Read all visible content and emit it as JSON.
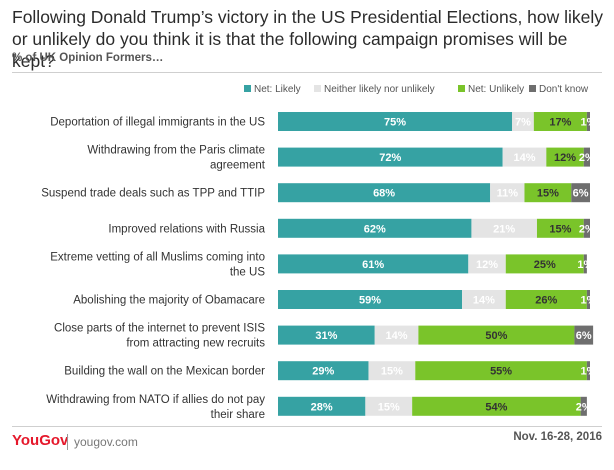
{
  "title": "Following Donald Trump’s victory in the US Presidential Elections, how likely or unlikely do you think it is that the following campaign promises will be kept?",
  "subtitle": "% of UK Opinion Formers…",
  "footer": {
    "logo": "YouGov",
    "site": "yougov.com",
    "date": "Nov. 16-28, 2016"
  },
  "chart_data": {
    "type": "bar",
    "orientation": "horizontal",
    "stacked": true,
    "legend_position": "top-right",
    "grid": false,
    "xlim": [
      0,
      100
    ],
    "categories": [
      [
        "Deportation of illegal immigrants in the US"
      ],
      [
        "Withdrawing from the Paris climate",
        "agreement"
      ],
      [
        "Suspend trade deals such as TPP and TTIP"
      ],
      [
        "Improved relations with Russia"
      ],
      [
        "Extreme vetting of all Muslims coming into",
        "the US"
      ],
      [
        "Abolishing the majority of Obamacare"
      ],
      [
        "Close parts of the internet to prevent ISIS",
        "from attracting new recruits"
      ],
      [
        "Building the wall on the Mexican border"
      ],
      [
        "Withdrawing from NATO if allies do not pay",
        "their share"
      ]
    ],
    "series": [
      {
        "name": "Net: Likely",
        "color": "#36a2a3",
        "label_color": "#ffffff",
        "values": [
          75,
          72,
          68,
          62,
          61,
          59,
          31,
          29,
          28
        ]
      },
      {
        "name": "Neither likely nor unlikely",
        "color": "#e4e4e4",
        "label_color": "#ffffff",
        "values": [
          7,
          14,
          11,
          21,
          12,
          14,
          14,
          15,
          15
        ]
      },
      {
        "name": "Net: Unlikely",
        "color": "#7ac42a",
        "label_color": "#333333",
        "values": [
          17,
          12,
          15,
          15,
          25,
          26,
          50,
          55,
          54
        ]
      },
      {
        "name": "Don't know",
        "color": "#6e6e6e",
        "label_color": "#ffffff",
        "values": [
          1,
          2,
          6,
          2,
          1,
          1,
          6,
          1,
          2
        ]
      }
    ]
  }
}
